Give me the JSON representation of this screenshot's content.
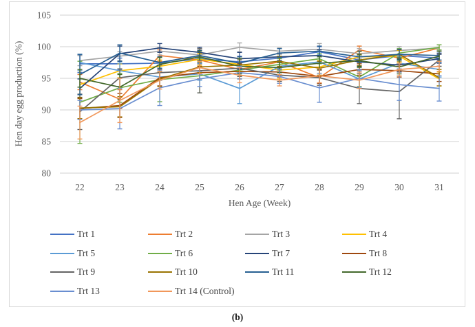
{
  "figure": {
    "caption": "(b)"
  },
  "colors": {
    "gridline": "#d9d9d9",
    "frame_border": "#d9d9d9",
    "axis_text": "#595959",
    "legend_text": "#404040"
  },
  "chart_data": {
    "type": "line",
    "title": "",
    "xlabel": "Hen Age (Week)",
    "ylabel": "Hen day egg production (%)",
    "x_categories": [
      22,
      23,
      24,
      25,
      26,
      27,
      28,
      29,
      30,
      31
    ],
    "y_ticks": [
      80,
      85,
      90,
      95,
      100,
      105
    ],
    "ylim": [
      80,
      105
    ],
    "grid": "horizontal",
    "legend_position": "bottom",
    "has_error_bars": true,
    "series": [
      {
        "name": "Trt 1",
        "color": "#4472C4",
        "values": [
          97.3,
          97.3,
          97.4,
          98.1,
          97.6,
          98.2,
          99.2,
          97.9,
          98.6,
          98.2
        ],
        "errors": [
          1.4,
          0.9,
          1.0,
          0.8,
          0.9,
          0.7,
          0.8,
          1.0,
          0.9,
          0.8
        ]
      },
      {
        "name": "Trt 2",
        "color": "#ED7D31",
        "values": [
          94.4,
          91.7,
          98.6,
          97.9,
          96.4,
          97.6,
          95.1,
          99.5,
          98.2,
          99.8
        ],
        "errors": [
          1.2,
          1.5,
          0.9,
          1.0,
          1.1,
          0.8,
          1.2,
          0.6,
          1.3,
          0.5
        ]
      },
      {
        "name": "Trt 3",
        "color": "#A5A5A5",
        "values": [
          97.8,
          98.5,
          99.3,
          98.7,
          99.9,
          99.3,
          99.6,
          98.9,
          99.4,
          99.8
        ],
        "errors": [
          0.8,
          0.7,
          0.6,
          0.9,
          0.7,
          0.5,
          0.9,
          0.8,
          0.6,
          0.5
        ]
      },
      {
        "name": "Trt 4",
        "color": "#FFC000",
        "values": [
          94.0,
          96.2,
          96.9,
          98.0,
          97.2,
          96.3,
          96.8,
          98.4,
          98.5,
          94.9
        ],
        "errors": [
          2.2,
          1.1,
          1.0,
          0.9,
          1.2,
          1.4,
          1.0,
          0.8,
          0.9,
          1.1
        ]
      },
      {
        "name": "Trt 5",
        "color": "#5B9BD5",
        "values": [
          97.5,
          96.2,
          95.2,
          95.7,
          93.4,
          96.9,
          97.6,
          94.9,
          97.4,
          96.4
        ],
        "errors": [
          1.3,
          1.2,
          1.4,
          1.0,
          2.4,
          0.9,
          1.1,
          1.3,
          1.0,
          1.2
        ]
      },
      {
        "name": "Trt 6",
        "color": "#70AD47",
        "values": [
          91.2,
          93.5,
          94.8,
          95.4,
          96.3,
          97.2,
          98.1,
          95.2,
          99.0,
          99.9
        ],
        "errors": [
          6.5,
          2.3,
          3.5,
          2.7,
          1.0,
          0.9,
          0.8,
          1.5,
          0.7,
          0.4
        ]
      },
      {
        "name": "Trt 7",
        "color": "#264478",
        "values": [
          93.4,
          98.9,
          99.8,
          99.1,
          98.1,
          98.4,
          98.6,
          97.6,
          97.1,
          98.1
        ],
        "errors": [
          1.5,
          1.2,
          0.7,
          0.8,
          1.0,
          0.6,
          0.9,
          0.8,
          1.1,
          0.7
        ]
      },
      {
        "name": "Trt 8",
        "color": "#9E480E",
        "values": [
          90.2,
          90.7,
          95.1,
          95.9,
          96.1,
          96.0,
          95.3,
          96.4,
          96.2,
          95.7
        ],
        "errors": [
          1.6,
          1.9,
          1.3,
          1.0,
          1.2,
          0.8,
          1.1,
          0.9,
          1.0,
          1.2
        ]
      },
      {
        "name": "Trt 9",
        "color": "#636363",
        "values": [
          89.7,
          95.1,
          95.9,
          96.2,
          96.6,
          95.5,
          95.1,
          93.4,
          92.9,
          97.9
        ],
        "errors": [
          2.8,
          1.4,
          1.2,
          3.5,
          1.3,
          1.0,
          1.2,
          2.4,
          4.3,
          1.0
        ]
      },
      {
        "name": "Trt 10",
        "color": "#997300",
        "values": [
          90.3,
          90.5,
          94.9,
          96.8,
          97.1,
          97.7,
          96.6,
          97.9,
          98.8,
          95.1
        ],
        "errors": [
          1.7,
          1.6,
          1.2,
          0.9,
          1.0,
          0.8,
          1.1,
          0.9,
          0.7,
          1.3
        ]
      },
      {
        "name": "Trt 11",
        "color": "#255E91",
        "values": [
          95.6,
          99.0,
          97.5,
          98.6,
          97.4,
          99.0,
          99.3,
          98.4,
          98.8,
          98.6
        ],
        "errors": [
          3.2,
          1.3,
          0.9,
          0.8,
          1.0,
          0.7,
          0.8,
          0.9,
          0.8,
          0.7
        ]
      },
      {
        "name": "Trt 12",
        "color": "#43682B",
        "values": [
          95.0,
          93.6,
          97.2,
          98.4,
          96.9,
          96.7,
          97.4,
          97.8,
          96.8,
          98.5
        ],
        "errors": [
          1.4,
          2.0,
          1.1,
          0.9,
          1.2,
          0.8,
          1.0,
          0.9,
          1.1,
          0.8
        ]
      },
      {
        "name": "Trt 13",
        "color": "#698ED0",
        "values": [
          90.0,
          90.2,
          93.5,
          94.9,
          95.9,
          95.3,
          93.5,
          95.0,
          94.0,
          93.4
        ],
        "errors": [
          1.5,
          3.2,
          2.8,
          1.2,
          1.0,
          1.1,
          2.3,
          1.4,
          2.5,
          2.0
        ]
      },
      {
        "name": "Trt 14 (Control)",
        "color": "#F1975A",
        "values": [
          88.0,
          91.5,
          94.7,
          96.7,
          95.5,
          94.7,
          95.4,
          94.7,
          96.4,
          96.9
        ],
        "errors": [
          2.6,
          3.5,
          1.4,
          1.0,
          1.2,
          0.9,
          1.1,
          1.3,
          1.0,
          0.8
        ]
      }
    ]
  }
}
